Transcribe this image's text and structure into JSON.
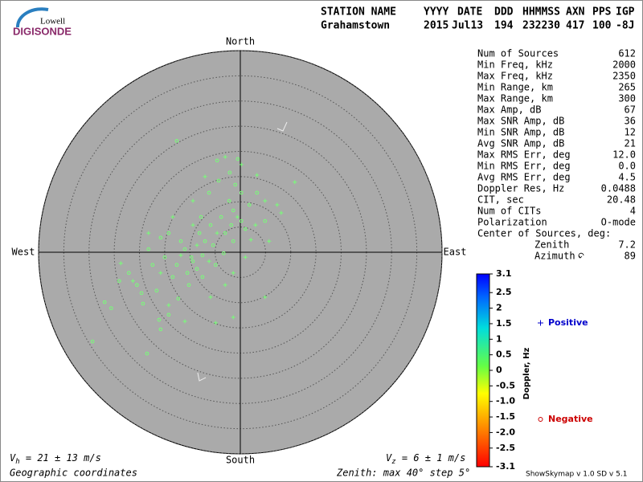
{
  "logo": {
    "top": "Lowell",
    "bottom": "DIGISONDE"
  },
  "header": {
    "labels": [
      "STATION NAME",
      "YYYY",
      "DATE",
      "DDD",
      "HHMMSS",
      "AXN",
      "PPS",
      "IGP"
    ],
    "values": [
      "Grahamstown",
      "2015",
      "Jul13",
      "194",
      "232230",
      "417",
      "100",
      "-8J"
    ]
  },
  "stats": {
    "rows": [
      [
        "Num of Sources",
        "612"
      ],
      [
        "Min Freq, kHz",
        "2000"
      ],
      [
        "Max Freq, kHz",
        "2350"
      ],
      [
        "Min Range, km",
        "265"
      ],
      [
        "Max Range, km",
        "300"
      ],
      [
        "Max Amp, dB",
        "67"
      ],
      [
        "Max SNR Amp, dB",
        "36"
      ],
      [
        "Min SNR Amp, dB",
        "12"
      ],
      [
        "Avg SNR Amp, dB",
        "21"
      ],
      [
        "Max RMS Err, deg",
        "12.0"
      ],
      [
        "Min RMS Err, deg",
        "0.0"
      ],
      [
        "Avg RMS Err, deg",
        "4.5"
      ],
      [
        "Doppler Res, Hz",
        "0.0488"
      ],
      [
        "CIT, sec",
        "20.48"
      ],
      [
        "Num of CITs",
        "4"
      ],
      [
        "Polarization",
        "O-mode"
      ]
    ],
    "center_heading": "Center of Sources, deg:",
    "center_rows": [
      [
        "Zenith",
        "7.2"
      ],
      [
        "Azimuth",
        "89"
      ]
    ]
  },
  "chart_data": {
    "type": "polar_scatter",
    "directions": {
      "north": "North",
      "south": "South",
      "west": "West",
      "east": "East"
    },
    "rlim": [
      0,
      40
    ],
    "rticks": [
      5,
      10,
      15,
      20,
      25,
      30,
      35,
      40
    ],
    "series": [
      {
        "name": "Positive",
        "marker": "plus",
        "color": "#77ff77",
        "legend_color": "#0000cc",
        "x": [
          10.8,
          3.3,
          4.9,
          7.3,
          8.1,
          5.7,
          3,
          2.1,
          1,
          -1.4,
          -3,
          -5.9,
          -4.9,
          -1.4,
          -11,
          -14.2,
          -23.7,
          -21.3,
          -18.2,
          -13.4,
          -9.4,
          -7,
          -3,
          0.2,
          4.9,
          -8.6,
          -11.8,
          -6.2,
          -4.6,
          -15.8,
          -9.4,
          -0.6
        ],
        "y": [
          13.9,
          15.3,
          10.2,
          9.4,
          7.8,
          2.2,
          5.4,
          2.5,
          -1,
          -4.1,
          -6.5,
          -8.9,
          -14,
          -12.9,
          -13.7,
          -10.5,
          -2.2,
          -5.7,
          3.8,
          7,
          10.2,
          15,
          18.9,
          17.4,
          -8.9,
          1.4,
          -0.6,
          -1.8,
          3.8,
          -4.1,
          5.4,
          7
        ]
      },
      {
        "name": "Negative",
        "marker": "circle",
        "color": "#77ff77",
        "legend_color": "#cc0000",
        "x": [
          -29.3,
          -18.5,
          -26.9,
          -25.6,
          -24,
          -19.6,
          -15.8,
          -14.2,
          -12.3,
          -10.5,
          -9.4,
          -7.5,
          -5.4,
          -3,
          -1.4,
          -1,
          -0.5,
          -4.6,
          -12.6,
          -6.2,
          -2.2,
          0.2,
          1,
          -17.4,
          -15,
          -13.4,
          -11,
          -8.6,
          -7,
          -11.8,
          -14.2,
          -15.8,
          -22.1,
          -20.5,
          -18.2,
          -3.8,
          -1.8,
          -5.9,
          -8.1,
          -10.2,
          -12.6,
          -9.7,
          -7.5,
          -4.9,
          -3.3,
          -1.4,
          0.2,
          1.8,
          3.3,
          4.9,
          -4.3,
          -2.1,
          -7.8,
          -16.1,
          -19.3,
          -16.6
        ],
        "y": [
          -17.7,
          -20.1,
          -9.9,
          -11.1,
          -5.7,
          -8.1,
          -15.3,
          -12.4,
          -9.2,
          -4.1,
          -1.8,
          -0.6,
          1.4,
          3.8,
          8.3,
          13.4,
          18.5,
          18.2,
          22.1,
          11.8,
          10.2,
          6.2,
          4.6,
          -2.5,
          -1,
          -4.9,
          0.6,
          -3.3,
          2.2,
          2.2,
          3.8,
          2.9,
          -4.1,
          -6.5,
          0.6,
          7,
          5.4,
          5.4,
          3.8,
          -6.5,
          -2.5,
          -1,
          -4.9,
          -2.5,
          -0.2,
          2.2,
          11.8,
          9.4,
          11.8,
          6.2,
          14.2,
          15.8,
          7,
          -13.4,
          -10.2,
          -7.6
        ]
      }
    ],
    "colorbar": {
      "label": "Doppler, Hz",
      "lim": [
        -3.1,
        3.1
      ],
      "ticks": [
        3.1,
        2.5,
        2,
        1.5,
        1,
        0.5,
        0,
        -0.5,
        {
          "value": -1,
          "label": "-1.0"
        },
        -1.5,
        {
          "value": -2,
          "label": "-2.0"
        },
        -2.5,
        -3.1
      ]
    }
  },
  "footer": {
    "vh": {
      "symbol": "V",
      "subscript": "h",
      "text": " = 21 ± 13 m/s"
    },
    "vz": {
      "symbol": "V",
      "subscript": "z",
      "text": " = 6 ± 1 m/s"
    },
    "coordinates": "Geographic coordinates",
    "zenith": "Zenith: max 40°  step 5°",
    "version": "ShowSkymap v 1.0  SD v 5.1"
  }
}
